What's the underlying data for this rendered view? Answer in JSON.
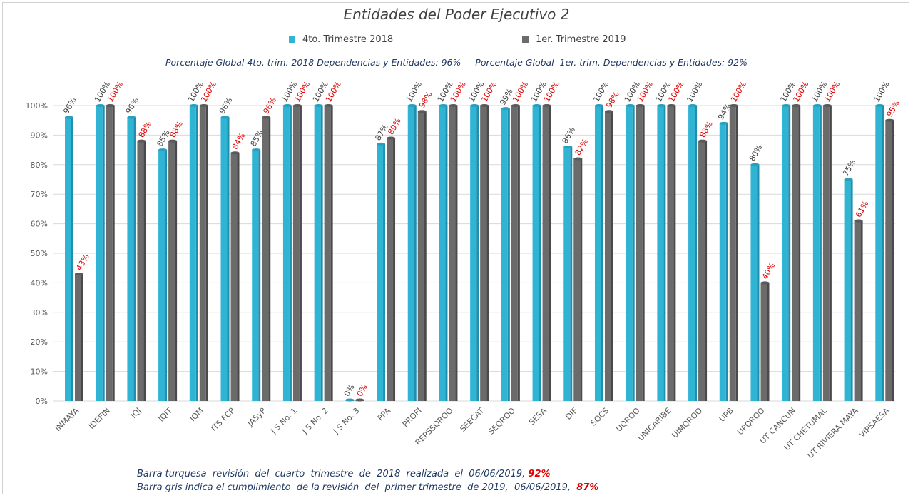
{
  "chart_data": {
    "type": "bar",
    "title": "Entidades del Poder Ejecutivo 2",
    "subtitle_left": "Porcentaje Global 4to. trim. 2018 Dependencias y Entidades: 96%",
    "subtitle_right": "Porcentaje Global  1er. trim. Dependencias y Entidades: 92%",
    "ylim": [
      0,
      100
    ],
    "yticks": [
      "0%",
      "10%",
      "20%",
      "30%",
      "40%",
      "50%",
      "60%",
      "70%",
      "80%",
      "90%",
      "100%"
    ],
    "grid": true,
    "legend_position": "top",
    "categories": [
      "INMAYA",
      "IDEFIN",
      "IQJ",
      "IQIT",
      "IQM",
      "ITS FCP",
      "JASyP",
      "J S No. 1",
      "J S No. 2",
      "J S No. 3",
      "PPA",
      "PROFI",
      "REPSSQROO",
      "SEECAT",
      "SEQROO",
      "SESA",
      "DIF",
      "SQCS",
      "UQROO",
      "UNICARIBE",
      "UIMQROO",
      "UPB",
      "UPQROO",
      "UT CANCUN",
      "UT CHETUMAL",
      "UT RIVIERA MAYA",
      "VIPSAESA"
    ],
    "series": [
      {
        "name": "4to. Trimestre 2018",
        "color": "#2fb4d4",
        "label_color": "#404040",
        "values": [
          96,
          100,
          96,
          85,
          100,
          96,
          85,
          100,
          100,
          0,
          87,
          100,
          100,
          100,
          99,
          100,
          86,
          100,
          100,
          100,
          100,
          94,
          80,
          100,
          100,
          75,
          100
        ]
      },
      {
        "name": "1er. Trimestre 2019",
        "color": "#6b6b6b",
        "label_color": "#e00000",
        "values": [
          43,
          100,
          88,
          88,
          100,
          84,
          96,
          100,
          100,
          0,
          89,
          98,
          100,
          100,
          100,
          100,
          82,
          98,
          100,
          100,
          88,
          100,
          40,
          100,
          100,
          61,
          95
        ]
      }
    ]
  },
  "notes": {
    "line1": "Barra turquesa  revisión  del  cuarto  trimestre  de  2018  realizada  el  06/06/2019,",
    "line1_pct": "92%",
    "line2": "Barra gris indica el cumplimiento  de la revisión  del  primer trimestre  de 2019,  06/06/2019,",
    "line2_pct": "87%"
  }
}
